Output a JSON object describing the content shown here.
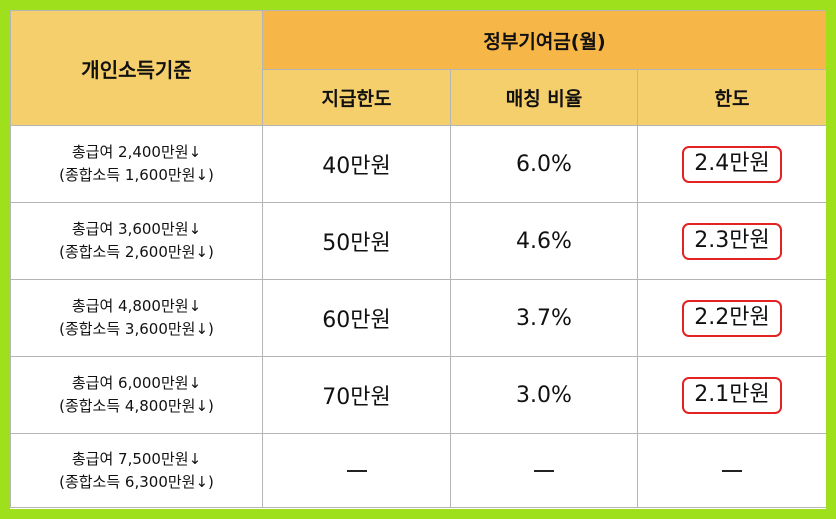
{
  "header": {
    "criteria": "개인소득기준",
    "government_contribution": "정부기여금(월)",
    "columns": [
      "지급한도",
      "매칭 비율",
      "한도"
    ]
  },
  "rows": [
    {
      "total_salary": "총급여 2,400만원↓",
      "combined_income": "(종합소득 1,600만원↓)",
      "payment_limit": "40만원",
      "matching_rate": "6.0%",
      "limit": "2.4만원",
      "limit_highlighted": true
    },
    {
      "total_salary": "총급여 3,600만원↓",
      "combined_income": "(종합소득 2,600만원↓)",
      "payment_limit": "50만원",
      "matching_rate": "4.6%",
      "limit": "2.3만원",
      "limit_highlighted": true
    },
    {
      "total_salary": "총급여 4,800만원↓",
      "combined_income": "(종합소득 3,600만원↓)",
      "payment_limit": "60만원",
      "matching_rate": "3.7%",
      "limit": "2.2만원",
      "limit_highlighted": true
    },
    {
      "total_salary": "총급여 6,000만원↓",
      "combined_income": "(종합소득 4,800만원↓)",
      "payment_limit": "70만원",
      "matching_rate": "3.0%",
      "limit": "2.1만원",
      "limit_highlighted": true
    },
    {
      "total_salary": "총급여 7,500만원↓",
      "combined_income": "(종합소득 6,300만원↓)",
      "payment_limit": null,
      "matching_rate": null,
      "limit": null,
      "limit_highlighted": false
    }
  ],
  "colors": {
    "outer_border": "#9ee01c",
    "header_light": "#f6cf6d",
    "header_dark": "#f7b648",
    "highlight_box": "#e32222"
  }
}
